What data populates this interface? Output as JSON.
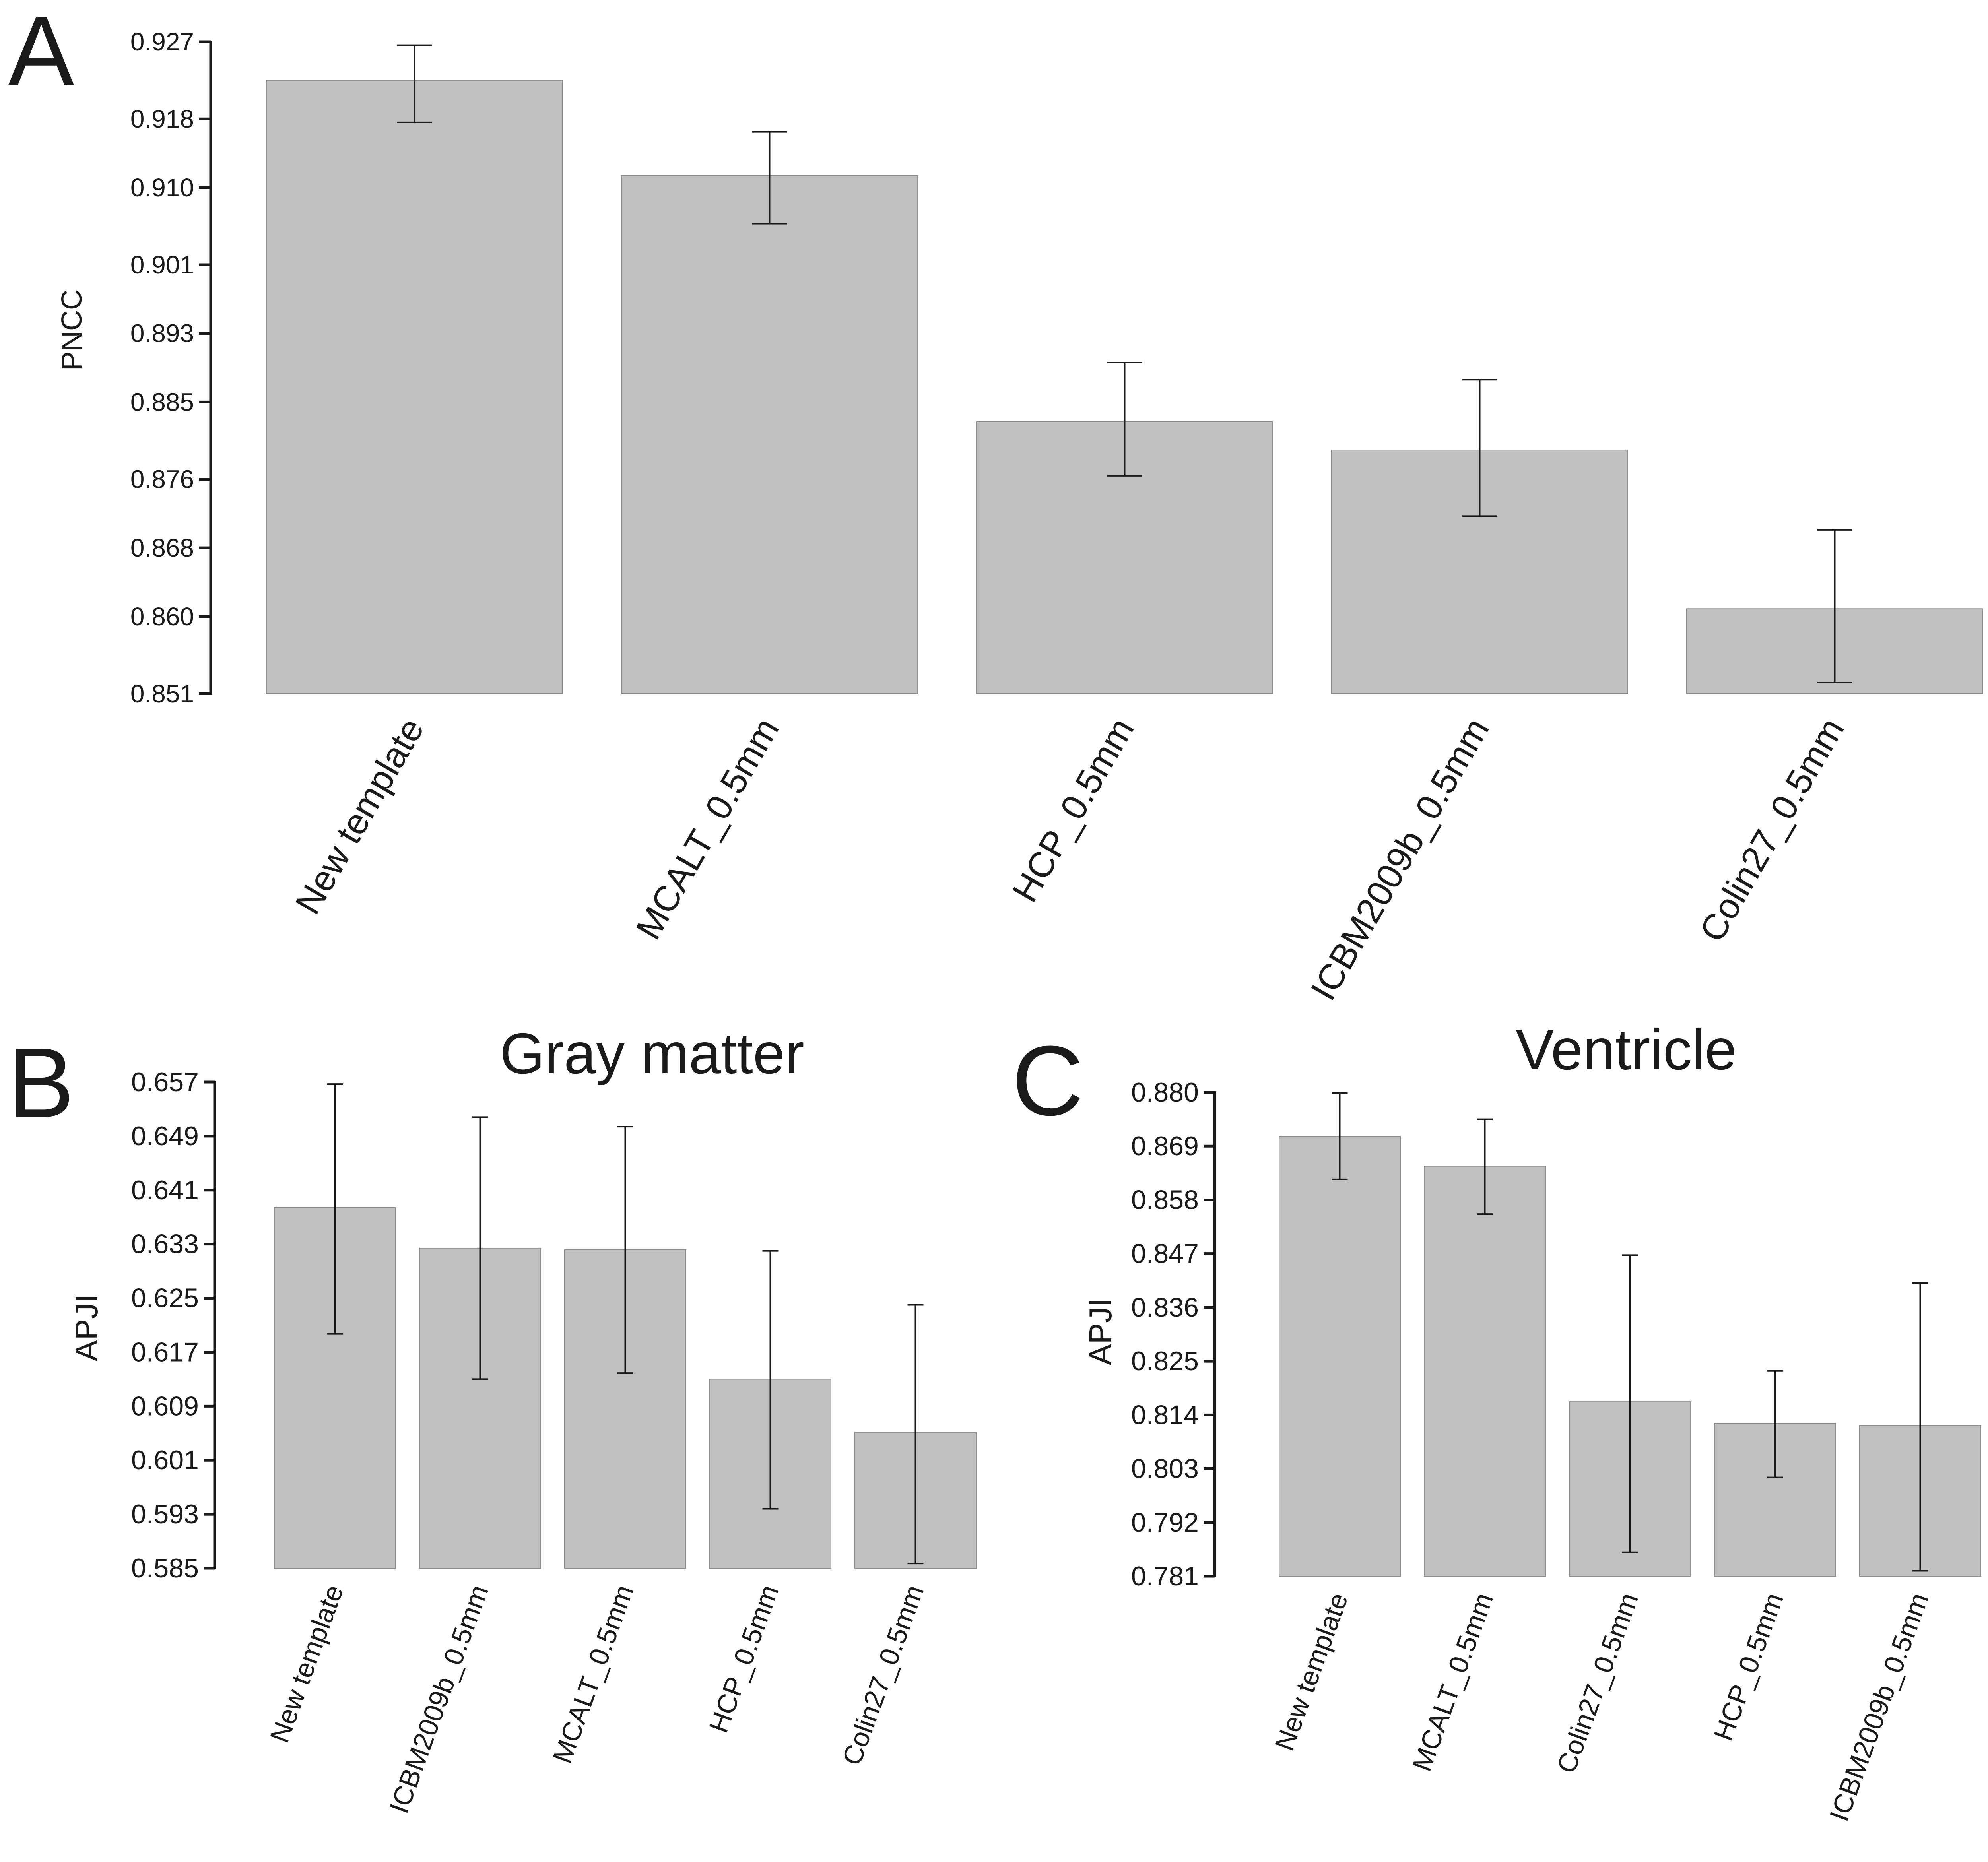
{
  "chart_data": [
    {
      "panel": "A",
      "type": "bar",
      "title": "",
      "xlabel": "",
      "ylabel": "PNCC",
      "ylim": [
        0.851,
        0.927
      ],
      "yticks": [
        "0.851",
        "0.860",
        "0.868",
        "0.876",
        "0.885",
        "0.893",
        "0.901",
        "0.910",
        "0.918",
        "0.927"
      ],
      "categories": [
        "New template",
        "MCALT_0.5mm",
        "HCP_0.5mm",
        "ICBM2009b_0.5mm",
        "Colin27_0.5mm"
      ],
      "values": [
        0.9225,
        0.9114,
        0.8827,
        0.8794,
        0.8609
      ],
      "err_low": [
        0.9176,
        0.9058,
        0.8764,
        0.8717,
        0.8523
      ],
      "err_high": [
        0.9266,
        0.9165,
        0.8896,
        0.8876,
        0.8701
      ]
    },
    {
      "panel": "B",
      "type": "bar",
      "title": "Gray matter",
      "xlabel": "",
      "ylabel": "APJI",
      "ylim": [
        0.585,
        0.657
      ],
      "yticks": [
        "0.585",
        "0.593",
        "0.601",
        "0.609",
        "0.617",
        "0.625",
        "0.633",
        "0.641",
        "0.649",
        "0.657"
      ],
      "categories": [
        "New template",
        "ICBM2009b_0.5mm",
        "MCALT_0.5mm",
        "HCP_0.5mm",
        "Colin27_0.5mm"
      ],
      "values": [
        0.6384,
        0.6324,
        0.6322,
        0.613,
        0.6051
      ],
      "err_low": [
        0.6197,
        0.613,
        0.6139,
        0.5938,
        0.5857
      ],
      "err_high": [
        0.6567,
        0.6518,
        0.6504,
        0.632,
        0.624
      ]
    },
    {
      "panel": "C",
      "type": "bar",
      "title": "Ventricle",
      "xlabel": "",
      "ylabel": "APJI",
      "ylim": [
        0.781,
        0.88
      ],
      "yticks": [
        "0.781",
        "0.792",
        "0.803",
        "0.814",
        "0.825",
        "0.836",
        "0.847",
        "0.858",
        "0.869",
        "0.880"
      ],
      "categories": [
        "New template",
        "MCALT_0.5mm",
        "Colin27_0.5mm",
        "HCP_0.5mm",
        "ICBM2009b_0.5mm"
      ],
      "values": [
        0.871,
        0.8649,
        0.8167,
        0.8123,
        0.8119
      ],
      "err_low": [
        0.8622,
        0.8551,
        0.7859,
        0.8012,
        0.7821
      ],
      "err_high": [
        0.8799,
        0.8745,
        0.8467,
        0.823,
        0.841
      ]
    }
  ],
  "panel_letters": {
    "a": "A",
    "b": "B",
    "c": "C"
  }
}
